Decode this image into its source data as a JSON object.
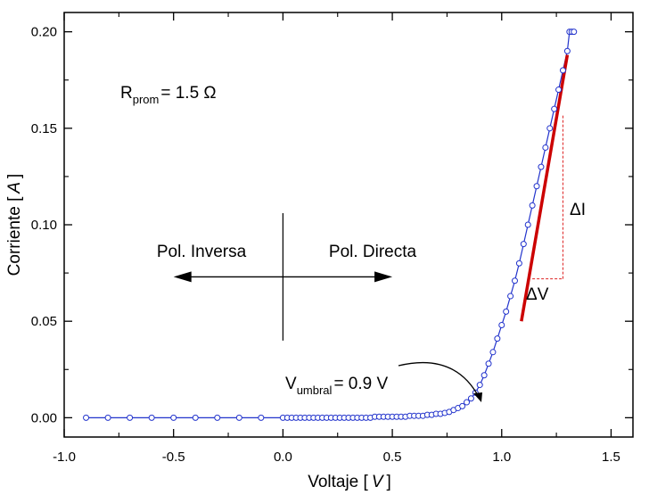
{
  "chart_data": {
    "type": "scatter",
    "xlabel": "Voltaje [",
    "xlabel_unit": "V",
    "xlabel_end": "]",
    "ylabel": "Corriente [",
    "ylabel_unit": "A",
    "ylabel_end": "]",
    "xlim": [
      -1.0,
      1.6
    ],
    "ylim": [
      -0.01,
      0.21
    ],
    "x_ticks": [
      -1.0,
      -0.5,
      0.0,
      0.5,
      1.0,
      1.5
    ],
    "x_tick_labels": [
      "-1.0",
      "-0.5",
      "0.0",
      "0.5",
      "1.0",
      "1.5"
    ],
    "y_ticks": [
      0.0,
      0.05,
      0.1,
      0.15,
      0.2
    ],
    "y_tick_labels": [
      "0.00",
      "0.05",
      "0.10",
      "0.15",
      "0.20"
    ],
    "grid": false,
    "series": [
      {
        "color": "#2233cc",
        "marker": "open-circle",
        "x": [
          -0.9,
          -0.8,
          -0.7,
          -0.6,
          -0.5,
          -0.4,
          -0.3,
          -0.2,
          -0.1,
          0.0,
          0.02,
          0.04,
          0.06,
          0.08,
          0.1,
          0.12,
          0.14,
          0.16,
          0.18,
          0.2,
          0.22,
          0.24,
          0.26,
          0.28,
          0.3,
          0.32,
          0.34,
          0.36,
          0.38,
          0.4,
          0.42,
          0.44,
          0.46,
          0.48,
          0.5,
          0.52,
          0.54,
          0.56,
          0.58,
          0.6,
          0.62,
          0.64,
          0.66,
          0.68,
          0.7,
          0.72,
          0.74,
          0.76,
          0.78,
          0.8,
          0.82,
          0.84,
          0.86,
          0.88,
          0.9,
          0.92,
          0.94,
          0.96,
          0.98,
          1.0,
          1.02,
          1.04,
          1.06,
          1.08,
          1.1,
          1.12,
          1.14,
          1.16,
          1.18,
          1.2,
          1.22,
          1.24,
          1.26,
          1.28,
          1.3,
          1.31,
          1.32,
          1.33
        ],
        "y": [
          0.0,
          0.0,
          0.0,
          0.0,
          0.0,
          0.0,
          0.0,
          0.0,
          0.0,
          0.0,
          0.0,
          0.0,
          0.0,
          0.0,
          0.0,
          0.0,
          0.0,
          0.0,
          0.0,
          0.0,
          0.0,
          0.0,
          0.0,
          0.0,
          0.0,
          0.0,
          0.0,
          0.0,
          0.0,
          0.0,
          0.0005,
          0.0005,
          0.0005,
          0.0005,
          0.0005,
          0.0005,
          0.0005,
          0.0005,
          0.001,
          0.001,
          0.001,
          0.001,
          0.0015,
          0.0015,
          0.002,
          0.002,
          0.0025,
          0.003,
          0.004,
          0.005,
          0.006,
          0.008,
          0.01,
          0.013,
          0.017,
          0.022,
          0.028,
          0.034,
          0.041,
          0.048,
          0.055,
          0.063,
          0.071,
          0.08,
          0.09,
          0.1,
          0.11,
          0.12,
          0.13,
          0.14,
          0.15,
          0.16,
          0.17,
          0.18,
          0.19,
          0.2,
          0.2,
          0.2
        ]
      }
    ],
    "fit_line": {
      "color": "#cc0000",
      "x": [
        1.09,
        1.3
      ],
      "y": [
        0.05,
        0.188
      ]
    },
    "slope_triangle": {
      "x1": 1.14,
      "y1": 0.072,
      "x2": 1.28,
      "y2": 0.157,
      "color": "#dd2222"
    },
    "cross": {
      "x": 0.0,
      "y_range": [
        0.04,
        0.106
      ],
      "arrow_y": 0.073,
      "x_range": [
        -0.5,
        0.5
      ]
    }
  },
  "annotations": {
    "r_prom_main": "R",
    "r_prom_sub": "prom",
    "r_prom_value": "= 1.5 Ω",
    "pol_inversa": "Pol. Inversa",
    "pol_directa": "Pol. Directa",
    "delta_i": "ΔI",
    "delta_v": "ΔV",
    "v_umbral_main": "V",
    "v_umbral_sub": "umbral",
    "v_umbral_value": "= 0.9 V"
  }
}
